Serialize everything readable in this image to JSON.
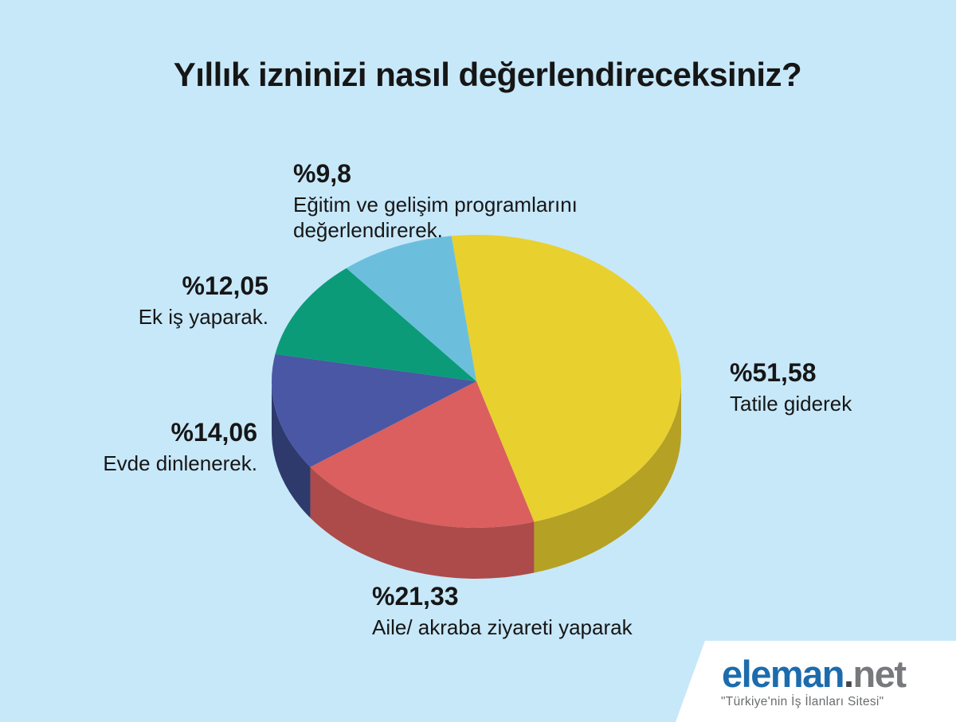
{
  "title": "Yıllık izninizi nasıl değerlendireceksiniz?",
  "background_color": "#c7e8f9",
  "text_color": "#161616",
  "chart_data": {
    "type": "pie",
    "style": "3d",
    "title": "Yıllık izninizi nasıl değerlendireceksiniz?",
    "unit": "percent",
    "start_angle_deg": -7,
    "legend_position": "callouts-around-pie",
    "slices": [
      {
        "label": "Tatile giderek",
        "value": 51.58,
        "value_text": "%51,58",
        "color": "#e8d02f",
        "side_color": "#b5a124"
      },
      {
        "label": "Aile/ akraba ziyareti yaparak",
        "value": 21.33,
        "value_text": "%21,33",
        "color": "#da5f5e",
        "side_color": "#ad4b4a"
      },
      {
        "label": "Evde dinlenerek.",
        "value": 14.06,
        "value_text": "%14,06",
        "color": "#4a57a4",
        "side_color": "#2e3a6c"
      },
      {
        "label": "Ek iş yaparak.",
        "value": 12.05,
        "value_text": "%12,05",
        "color": "#0b9b78",
        "side_color": "#0a7a5e"
      },
      {
        "label": "Eğitim ve gelişim programlarını değerlendirerek.",
        "value": 9.8,
        "value_text": "%9,8",
        "color": "#6bbfdd",
        "side_color": "#4f9cb8"
      }
    ]
  },
  "branding": {
    "logo_primary": "eleman",
    "logo_dot": ".",
    "logo_suffix": "net",
    "logo_primary_color": "#1c6cad",
    "logo_suffix_color": "#77797c",
    "tagline": "\"Türkiye'nin İş İlanları Sitesi\""
  }
}
